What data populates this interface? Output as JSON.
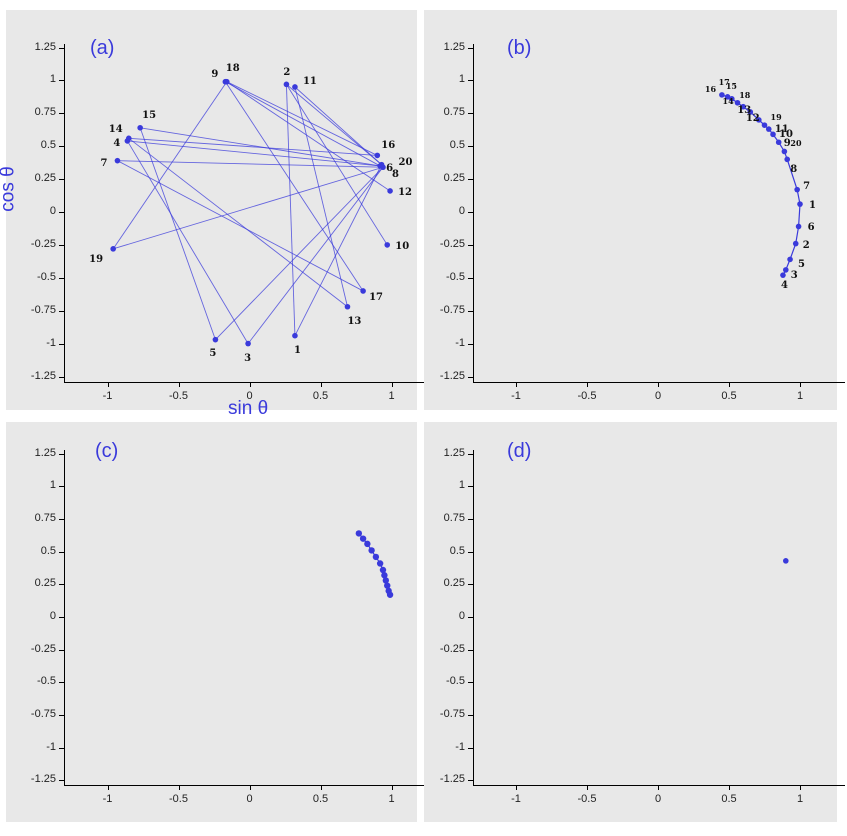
{
  "colors": {
    "series": "#3a3adb",
    "panel_bg": "#e8e8e8",
    "axis": "#000000"
  },
  "axes": {
    "xlabel": "sin θ",
    "ylabel": "cos θ",
    "xlim": [
      -1.3,
      1.3
    ],
    "ylim": [
      -1.3,
      1.3
    ],
    "x_ticks": [
      -1,
      -0.5,
      0,
      0.5,
      1
    ],
    "x_tick_labels": [
      "-1",
      "-0.5",
      "0",
      "0.5",
      "1"
    ],
    "y_ticks": [
      1.25,
      1,
      0.75,
      0.5,
      0.25,
      0,
      -0.25,
      -0.5,
      -0.75,
      -1,
      -1.25
    ],
    "y_tick_labels": [
      "1.25",
      "1",
      "0.75",
      "0.5",
      "0.25",
      "0",
      "-0.25",
      "-0.5",
      "-0.75",
      "-1",
      "-1.25"
    ]
  },
  "chart_data": [
    {
      "type": "scatter",
      "panel": "(a)",
      "connected": true,
      "points": [
        {
          "label": "1",
          "x": 0.32,
          "y": -0.94
        },
        {
          "label": "2",
          "x": 0.26,
          "y": 0.97
        },
        {
          "label": "3",
          "x": -0.01,
          "y": -1.0
        },
        {
          "label": "4",
          "x": -0.86,
          "y": 0.54
        },
        {
          "label": "5",
          "x": -0.24,
          "y": -0.97
        },
        {
          "label": "6",
          "x": 0.92,
          "y": 0.35
        },
        {
          "label": "7",
          "x": -0.93,
          "y": 0.39
        },
        {
          "label": "8",
          "x": 0.94,
          "y": 0.34
        },
        {
          "label": "9",
          "x": -0.17,
          "y": 0.99
        },
        {
          "label": "10",
          "x": 0.97,
          "y": -0.25
        },
        {
          "label": "11",
          "x": 0.32,
          "y": 0.95
        },
        {
          "label": "12",
          "x": 0.99,
          "y": 0.16
        },
        {
          "label": "13",
          "x": 0.69,
          "y": -0.72
        },
        {
          "label": "14",
          "x": -0.85,
          "y": 0.56
        },
        {
          "label": "15",
          "x": -0.77,
          "y": 0.64
        },
        {
          "label": "16",
          "x": 0.9,
          "y": 0.43
        },
        {
          "label": "17",
          "x": 0.8,
          "y": -0.6
        },
        {
          "label": "18",
          "x": -0.16,
          "y": 0.99
        },
        {
          "label": "19",
          "x": -0.96,
          "y": -0.28
        },
        {
          "label": "20",
          "x": 0.93,
          "y": 0.36
        }
      ],
      "edges": [
        [
          6,
          9
        ],
        [
          6,
          4
        ],
        [
          6,
          15
        ],
        [
          8,
          7
        ],
        [
          8,
          19
        ],
        [
          8,
          5
        ],
        [
          8,
          3
        ],
        [
          16,
          14
        ],
        [
          16,
          18
        ],
        [
          20,
          1
        ],
        [
          20,
          11
        ],
        [
          20,
          2
        ],
        [
          12,
          18
        ],
        [
          18,
          19
        ],
        [
          14,
          13
        ],
        [
          7,
          17
        ],
        [
          4,
          3
        ],
        [
          2,
          1
        ],
        [
          9,
          17
        ],
        [
          11,
          13
        ],
        [
          5,
          15
        ],
        [
          2,
          10
        ]
      ]
    },
    {
      "type": "line",
      "panel": "(b)",
      "connected": true,
      "points": [
        {
          "label": "16",
          "x": 0.45,
          "y": 0.89
        },
        {
          "label": "17",
          "x": 0.49,
          "y": 0.875
        },
        {
          "label": "15",
          "x": 0.52,
          "y": 0.86
        },
        {
          "label": "14",
          "x": 0.56,
          "y": 0.83
        },
        {
          "label": "18",
          "x": 0.6,
          "y": 0.8
        },
        {
          "label": "13",
          "x": 0.65,
          "y": 0.76
        },
        {
          "label": "12",
          "x": 0.71,
          "y": 0.7
        },
        {
          "label": "19",
          "x": 0.75,
          "y": 0.66
        },
        {
          "label": "11",
          "x": 0.78,
          "y": 0.63
        },
        {
          "label": "10",
          "x": 0.81,
          "y": 0.59
        },
        {
          "label": "9",
          "x": 0.85,
          "y": 0.53
        },
        {
          "label": "20",
          "x": 0.89,
          "y": 0.46
        },
        {
          "label": "8",
          "x": 0.91,
          "y": 0.4
        },
        {
          "label": "7",
          "x": 0.98,
          "y": 0.17
        },
        {
          "label": "1",
          "x": 1.0,
          "y": 0.06
        },
        {
          "label": "6",
          "x": 0.99,
          "y": -0.11
        },
        {
          "label": "2",
          "x": 0.97,
          "y": -0.24
        },
        {
          "label": "5",
          "x": 0.93,
          "y": -0.36
        },
        {
          "label": "3",
          "x": 0.9,
          "y": -0.44
        },
        {
          "label": "4",
          "x": 0.88,
          "y": -0.48
        }
      ]
    },
    {
      "type": "line",
      "panel": "(c)",
      "connected": true,
      "points": [
        {
          "x": 0.77,
          "y": 0.64
        },
        {
          "x": 0.8,
          "y": 0.6
        },
        {
          "x": 0.83,
          "y": 0.56
        },
        {
          "x": 0.86,
          "y": 0.51
        },
        {
          "x": 0.89,
          "y": 0.46
        },
        {
          "x": 0.92,
          "y": 0.41
        },
        {
          "x": 0.94,
          "y": 0.36
        },
        {
          "x": 0.95,
          "y": 0.32
        },
        {
          "x": 0.96,
          "y": 0.28
        },
        {
          "x": 0.97,
          "y": 0.24
        },
        {
          "x": 0.98,
          "y": 0.2
        },
        {
          "x": 0.99,
          "y": 0.17
        }
      ]
    },
    {
      "type": "scatter",
      "panel": "(d)",
      "connected": false,
      "points": [
        {
          "x": 0.9,
          "y": 0.43
        }
      ]
    }
  ]
}
